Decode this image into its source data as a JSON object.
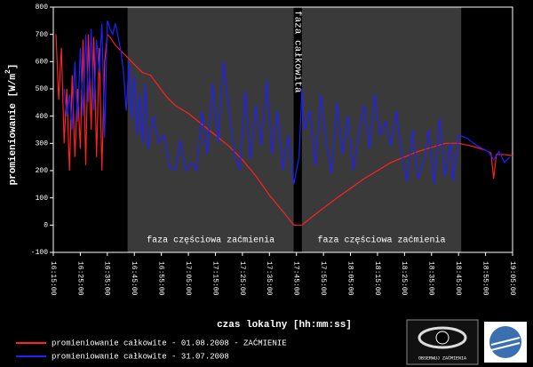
{
  "chart_data": {
    "type": "line",
    "y_label": "promieniowanie [W/m",
    "y_label_sup": "2",
    "y_label_end": "]",
    "x_label": "czas lokalny [hh:mm:ss]",
    "ylim": [
      -100,
      800
    ],
    "yticks": [
      -100,
      0,
      100,
      200,
      300,
      400,
      500,
      600,
      700,
      800
    ],
    "xlim": [
      "16:15:00",
      "19:05:00"
    ],
    "xticks": [
      "16:15:00",
      "16:25:00",
      "16:35:00",
      "16:45:00",
      "16:55:00",
      "17:05:00",
      "17:15:00",
      "17:25:00",
      "17:35:00",
      "17:45:00",
      "17:55:00",
      "18:05:00",
      "18:15:00",
      "18:25:00",
      "18:35:00",
      "18:45:00",
      "18:55:00",
      "19:05:00"
    ],
    "phases": [
      {
        "start": "16:42:30",
        "end": "17:44:00",
        "label": "faza częściowa zaćmienia",
        "color": "#3a3a3a"
      },
      {
        "start": "17:44:00",
        "end": "17:47:00",
        "label": "faza całkowita",
        "color": "#000000"
      },
      {
        "start": "17:47:00",
        "end": "18:46:00",
        "label": "faza częściowa zaćmienia",
        "color": "#3a3a3a"
      }
    ],
    "series": [
      {
        "name": "promieniowanie całkowite - 01.08.2008 - ZAĆMIENIE",
        "color": "#ff2020",
        "x": [
          "16:16:00",
          "16:17:00",
          "16:18:00",
          "16:19:00",
          "16:20:00",
          "16:21:00",
          "16:22:00",
          "16:23:00",
          "16:24:00",
          "16:25:00",
          "16:26:00",
          "16:27:00",
          "16:28:00",
          "16:29:00",
          "16:30:00",
          "16:31:00",
          "16:32:00",
          "16:33:00",
          "16:34:00",
          "16:35:00",
          "16:36:00",
          "16:38:00",
          "16:40:00",
          "16:42:00",
          "16:45:00",
          "16:48:00",
          "16:51:00",
          "16:54:00",
          "16:57:00",
          "17:00:00",
          "17:05:00",
          "17:10:00",
          "17:15:00",
          "17:20:00",
          "17:25:00",
          "17:30:00",
          "17:35:00",
          "17:40:00",
          "17:44:00",
          "17:47:00",
          "17:52:00",
          "18:00:00",
          "18:10:00",
          "18:20:00",
          "18:30:00",
          "18:40:00",
          "18:45:00",
          "18:50:00",
          "18:55:00",
          "18:57:00",
          "18:58:00",
          "18:59:00",
          "19:03:00",
          "19:05:00"
        ],
        "values": [
          700,
          460,
          650,
          300,
          500,
          200,
          550,
          250,
          500,
          280,
          680,
          220,
          700,
          350,
          690,
          250,
          650,
          200,
          600,
          700,
          690,
          660,
          640,
          620,
          590,
          560,
          550,
          510,
          470,
          440,
          410,
          370,
          330,
          290,
          240,
          180,
          110,
          50,
          0,
          0,
          40,
          100,
          170,
          230,
          270,
          300,
          300,
          290,
          275,
          265,
          170,
          260,
          258,
          255
        ]
      },
      {
        "name": "promieniowanie całkowite - 31.07.2008",
        "color": "#2020ff",
        "x": [
          "16:19:00",
          "16:20:00",
          "16:21:00",
          "16:22:00",
          "16:23:00",
          "16:24:00",
          "16:25:00",
          "16:26:00",
          "16:27:00",
          "16:28:00",
          "16:29:00",
          "16:30:00",
          "16:31:00",
          "16:32:00",
          "16:33:00",
          "16:34:00",
          "16:35:00",
          "16:36:00",
          "16:37:00",
          "16:38:00",
          "16:39:00",
          "16:40:00",
          "16:41:00",
          "16:42:00",
          "16:43:00",
          "16:44:00",
          "16:45:00",
          "16:46:00",
          "16:47:00",
          "16:48:00",
          "16:49:00",
          "16:50:00",
          "16:52:00",
          "16:54:00",
          "16:56:00",
          "16:58:00",
          "17:00:00",
          "17:02:00",
          "17:04:00",
          "17:06:00",
          "17:08:00",
          "17:10:00",
          "17:12:00",
          "17:14:00",
          "17:16:00",
          "17:18:00",
          "17:20:00",
          "17:22:00",
          "17:24:00",
          "17:26:00",
          "17:28:00",
          "17:30:00",
          "17:32:00",
          "17:34:00",
          "17:36:00",
          "17:38:00",
          "17:40:00",
          "17:42:00",
          "17:44:00",
          "17:46:00",
          "17:47:00",
          "17:48:00",
          "17:50:00",
          "17:52:00",
          "17:54:00",
          "17:56:00",
          "17:58:00",
          "18:00:00",
          "18:02:00",
          "18:04:00",
          "18:06:00",
          "18:08:00",
          "18:10:00",
          "18:12:00",
          "18:14:00",
          "18:16:00",
          "18:18:00",
          "18:20:00",
          "18:22:00",
          "18:24:00",
          "18:26:00",
          "18:28:00",
          "18:30:00",
          "18:32:00",
          "18:34:00",
          "18:36:00",
          "18:38:00",
          "18:40:00",
          "18:42:00",
          "18:43:00",
          "18:45:00",
          "18:48:00",
          "18:52:00",
          "18:56:00",
          "18:58:00",
          "19:00:00",
          "19:02:00",
          "19:04:00"
        ],
        "values": [
          500,
          400,
          480,
          350,
          600,
          380,
          650,
          400,
          700,
          450,
          720,
          420,
          680,
          560,
          740,
          320,
          750,
          720,
          700,
          740,
          690,
          640,
          560,
          420,
          600,
          390,
          550,
          330,
          480,
          300,
          520,
          280,
          400,
          300,
          330,
          210,
          200,
          310,
          200,
          230,
          200,
          420,
          260,
          520,
          300,
          600,
          420,
          260,
          200,
          490,
          240,
          440,
          290,
          530,
          260,
          420,
          200,
          330,
          150,
          250,
          500,
          350,
          420,
          220,
          480,
          300,
          190,
          450,
          260,
          400,
          200,
          330,
          440,
          280,
          480,
          330,
          380,
          290,
          420,
          260,
          160,
          350,
          170,
          230,
          350,
          150,
          390,
          180,
          300,
          160,
          330,
          320,
          290,
          270,
          240,
          270,
          230,
          250
        ]
      }
    ],
    "logo_text": "OBSERWUJ ZAĆMIENIA"
  }
}
